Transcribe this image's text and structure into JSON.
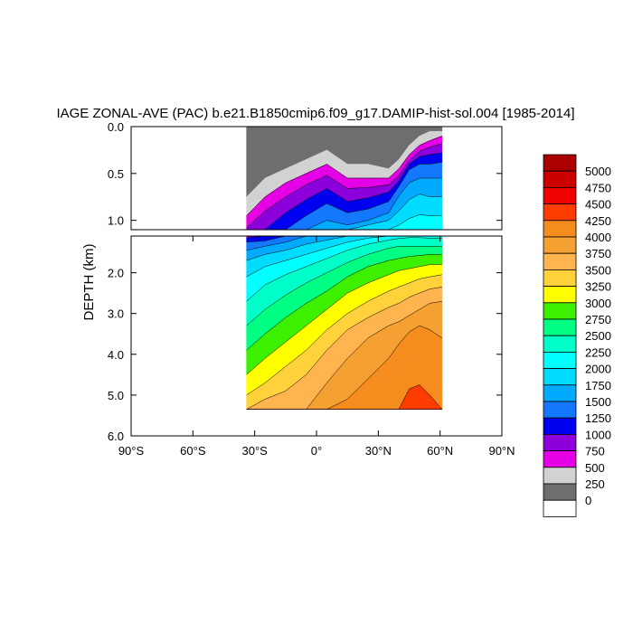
{
  "chart_data": {
    "type": "contour",
    "title": "IAGE ZONAL-AVE (PAC) b.e21.B1850cmip6.f09_g17.DAMIP-hist-sol.004 [1985-2014]",
    "ylabel": "DEPTH (km)",
    "xlabel": "",
    "xlim": [
      -90,
      90
    ],
    "x_ticks": [
      {
        "value": -90,
        "label": "90°S"
      },
      {
        "value": -60,
        "label": "60°S"
      },
      {
        "value": -30,
        "label": "30°S"
      },
      {
        "value": 0,
        "label": "0°"
      },
      {
        "value": 30,
        "label": "30°N"
      },
      {
        "value": 60,
        "label": "60°N"
      },
      {
        "value": 90,
        "label": "90°N"
      }
    ],
    "upper_panel": {
      "ylim": [
        0.0,
        1.1
      ],
      "y_ticks": [
        {
          "value": 0.0,
          "label": "0.0"
        },
        {
          "value": 0.5,
          "label": "0.5"
        },
        {
          "value": 1.0,
          "label": "1.0"
        }
      ]
    },
    "lower_panel": {
      "ylim": [
        1.1,
        6.0
      ],
      "y_ticks": [
        {
          "value": 2.0,
          "label": "2.0"
        },
        {
          "value": 3.0,
          "label": "3.0"
        },
        {
          "value": 4.0,
          "label": "4.0"
        },
        {
          "value": 5.0,
          "label": "5.0"
        },
        {
          "value": 6.0,
          "label": "6.0"
        }
      ]
    },
    "data_extent": {
      "lat_south": -34,
      "lat_north": 61,
      "bottom_depth_km": 5.35
    },
    "levels": [
      0,
      250,
      500,
      750,
      1000,
      1250,
      1500,
      1750,
      2000,
      2250,
      2500,
      2750,
      3000,
      3250,
      3500,
      3750,
      4000,
      4250,
      4500,
      4750,
      5000
    ],
    "colors": [
      "#ffffff",
      "#6e6e6e",
      "#d2d2d2",
      "#e600e6",
      "#8c00dc",
      "#0000f0",
      "#1478ff",
      "#00aaff",
      "#00dcff",
      "#00ffff",
      "#00ffc8",
      "#00ff82",
      "#3cf000",
      "#ffff00",
      "#ffd23c",
      "#ffb450",
      "#f5a032",
      "#f58c1e",
      "#ff3c00",
      "#f00000",
      "#cd0000",
      "#aa0000"
    ],
    "colorbar_labels": [
      "0",
      "250",
      "500",
      "750",
      "1000",
      "1250",
      "1500",
      "1750",
      "2000",
      "2250",
      "2500",
      "2750",
      "3000",
      "3250",
      "3500",
      "3750",
      "4000",
      "4250",
      "4500",
      "4750",
      "5000"
    ],
    "contour_depths_at_lat": {
      "lat": [
        -34,
        -25,
        -15,
        -5,
        5,
        15,
        25,
        35,
        40,
        45,
        50,
        55,
        61
      ],
      "depths_km": [
        [
          0.75,
          0.55,
          0.45,
          0.35,
          0.25,
          0.4,
          0.4,
          0.45,
          0.35,
          0.2,
          0.1,
          0.05,
          0.05
        ],
        [
          0.95,
          0.75,
          0.6,
          0.5,
          0.4,
          0.55,
          0.55,
          0.55,
          0.45,
          0.3,
          0.2,
          0.15,
          0.1
        ],
        [
          1.08,
          0.9,
          0.75,
          0.62,
          0.52,
          0.66,
          0.65,
          0.62,
          0.52,
          0.36,
          0.26,
          0.22,
          0.18
        ],
        [
          1.15,
          1.1,
          0.92,
          0.78,
          0.66,
          0.8,
          0.76,
          0.7,
          0.58,
          0.4,
          0.32,
          0.3,
          0.28
        ],
        [
          1.25,
          1.22,
          1.1,
          0.95,
          0.82,
          0.92,
          0.88,
          0.8,
          0.64,
          0.46,
          0.4,
          0.4,
          0.38
        ],
        [
          1.45,
          1.35,
          1.25,
          1.1,
          1.0,
          1.05,
          1.0,
          0.92,
          0.74,
          0.6,
          0.55,
          0.55,
          0.55
        ],
        [
          1.7,
          1.55,
          1.45,
          1.3,
          1.2,
          1.1,
          1.05,
          1.0,
          0.9,
          0.78,
          0.72,
          0.75,
          0.75
        ],
        [
          2.1,
          1.85,
          1.7,
          1.55,
          1.4,
          1.25,
          1.15,
          1.1,
          1.05,
          0.98,
          0.94,
          0.95,
          0.95
        ],
        [
          2.7,
          2.3,
          2.05,
          1.85,
          1.65,
          1.45,
          1.3,
          1.2,
          1.16,
          1.14,
          1.14,
          1.15,
          1.15
        ],
        [
          3.3,
          2.9,
          2.55,
          2.25,
          2.0,
          1.75,
          1.55,
          1.4,
          1.35,
          1.35,
          1.35,
          1.35,
          1.35
        ],
        [
          3.9,
          3.5,
          3.1,
          2.75,
          2.45,
          2.1,
          1.85,
          1.7,
          1.65,
          1.6,
          1.58,
          1.55,
          1.55
        ],
        [
          4.5,
          4.1,
          3.7,
          3.3,
          2.9,
          2.5,
          2.25,
          2.05,
          1.95,
          1.9,
          1.85,
          1.8,
          1.8
        ],
        [
          5.0,
          4.7,
          4.3,
          3.9,
          3.4,
          3.0,
          2.7,
          2.45,
          2.35,
          2.25,
          2.15,
          2.1,
          2.05
        ],
        [
          5.35,
          5.1,
          4.9,
          4.5,
          3.9,
          3.4,
          3.1,
          2.85,
          2.75,
          2.6,
          2.5,
          2.4,
          2.35
        ],
        [
          5.35,
          5.35,
          5.35,
          5.35,
          4.7,
          4.1,
          3.6,
          3.3,
          3.2,
          3.05,
          2.9,
          2.75,
          2.7
        ],
        [
          5.35,
          5.35,
          5.35,
          5.35,
          5.35,
          5.1,
          4.6,
          4.1,
          3.75,
          3.45,
          3.3,
          3.4,
          3.6
        ],
        [
          5.35,
          5.35,
          5.35,
          5.35,
          5.35,
          5.35,
          5.35,
          5.35,
          5.35,
          4.85,
          4.75,
          5.0,
          5.35
        ],
        [
          5.35,
          5.35,
          5.35,
          5.35,
          5.35,
          5.35,
          5.35,
          5.35,
          5.35,
          5.35,
          5.35,
          5.35,
          5.35
        ],
        [
          5.35,
          5.35,
          5.35,
          5.35,
          5.35,
          5.35,
          5.35,
          5.35,
          5.35,
          5.35,
          5.35,
          5.35,
          5.35
        ],
        [
          5.35,
          5.35,
          5.35,
          5.35,
          5.35,
          5.35,
          5.35,
          5.35,
          5.35,
          5.35,
          5.35,
          5.35,
          5.35
        ]
      ]
    },
    "grid": false,
    "legend": "right colorbar"
  }
}
